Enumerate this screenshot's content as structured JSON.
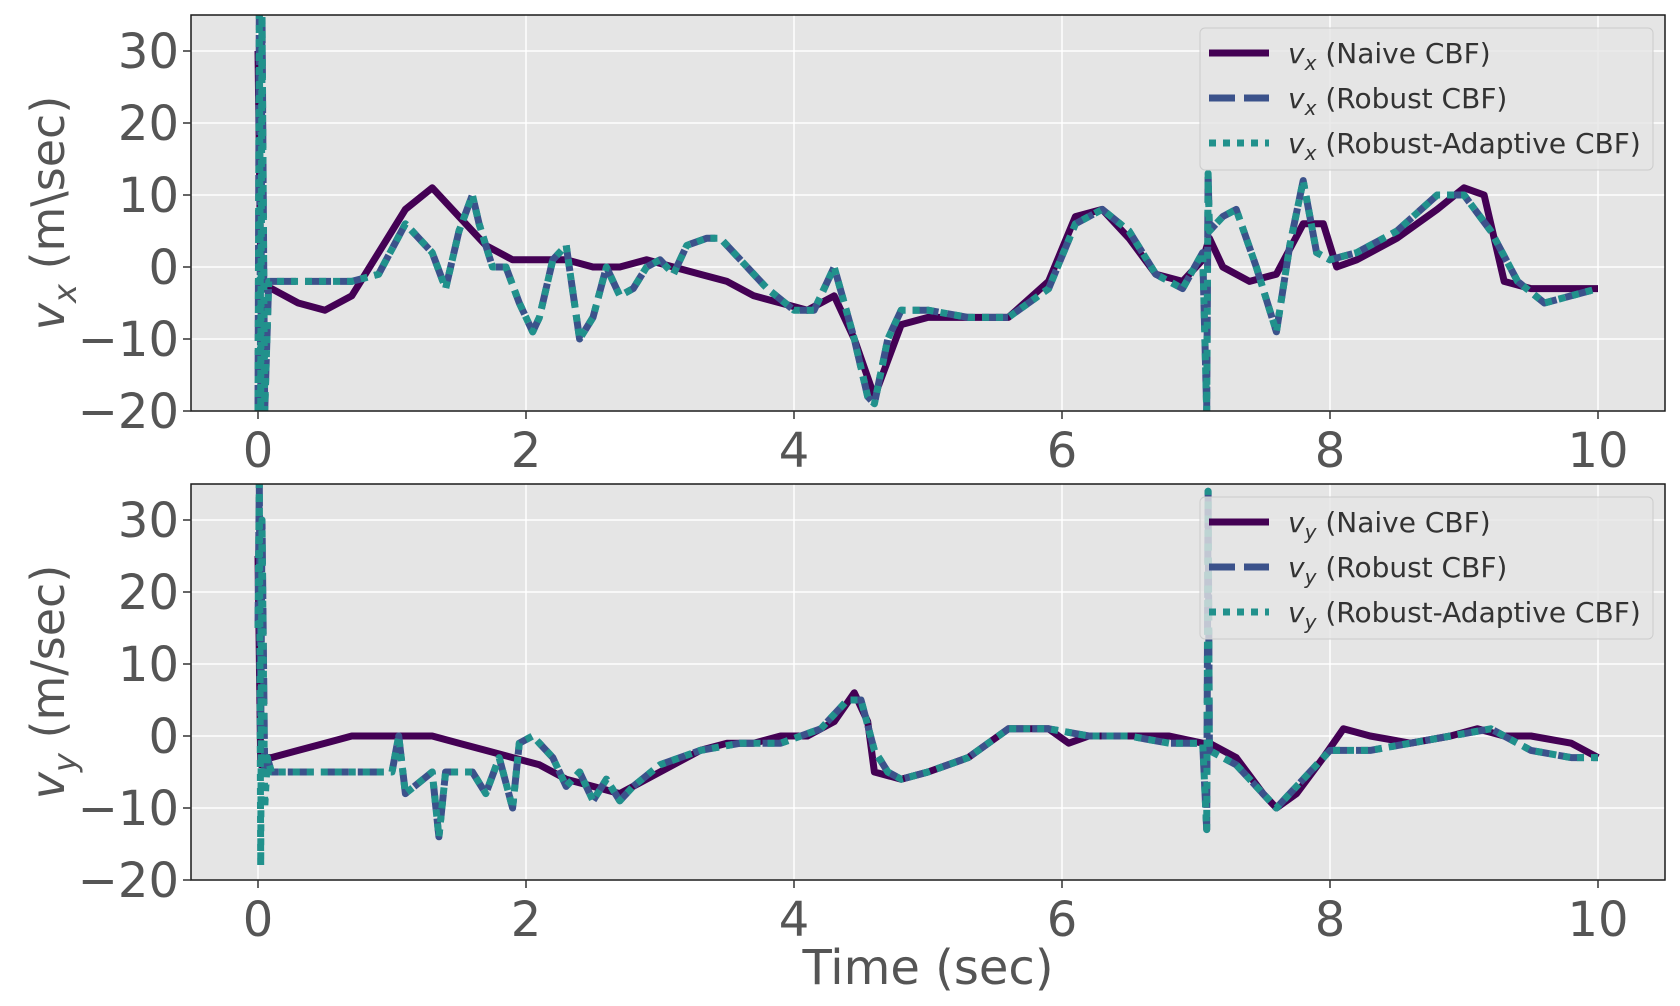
{
  "chart_data": [
    {
      "type": "line",
      "title": "",
      "xlabel": "",
      "ylabel_var": "v",
      "ylabel_sub": "x",
      "ylabel_unit": " (m\\sec)",
      "xlim": [
        -0.5,
        10.5
      ],
      "ylim": [
        -20,
        35
      ],
      "xticks": [
        "0",
        "2",
        "4",
        "6",
        "8",
        "10"
      ],
      "yticks": [
        "−20",
        "−10",
        "0",
        "10",
        "20",
        "30"
      ],
      "grid": true,
      "legend_position": "top-right",
      "legend_entries": [
        {
          "var": "v",
          "sub": "x",
          "label": " (Naive CBF)"
        },
        {
          "var": "v",
          "sub": "x",
          "label": " (Robust CBF)"
        },
        {
          "var": "v",
          "sub": "x",
          "label": " (Robust-Adaptive CBF)"
        }
      ],
      "series": [
        {
          "key": "naive",
          "color": "#440154",
          "style": "solid",
          "x": [
            0,
            0.02,
            0.05,
            0.1,
            0.3,
            0.5,
            0.7,
            0.9,
            1.1,
            1.3,
            1.5,
            1.7,
            1.9,
            2.1,
            2.3,
            2.5,
            2.7,
            2.9,
            3.1,
            3.3,
            3.5,
            3.7,
            3.9,
            4.1,
            4.3,
            4.45,
            4.6,
            4.8,
            5.0,
            5.3,
            5.6,
            5.9,
            6.1,
            6.3,
            6.5,
            6.7,
            6.9,
            7.05,
            7.1,
            7.2,
            7.4,
            7.6,
            7.8,
            7.95,
            8.05,
            8.2,
            8.5,
            8.8,
            9.0,
            9.15,
            9.3,
            9.5,
            9.8,
            10.0
          ],
          "y": [
            30,
            0,
            -3,
            -3,
            -5,
            -6,
            -4,
            2,
            8,
            11,
            7,
            3,
            1,
            1,
            1,
            0,
            0,
            1,
            0,
            -1,
            -2,
            -4,
            -5,
            -6,
            -4,
            -10,
            -18,
            -8,
            -7,
            -7,
            -7,
            -2,
            7,
            8,
            4,
            -1,
            -2,
            1,
            4,
            0,
            -2,
            -1,
            6,
            6,
            0,
            1,
            4,
            8,
            11,
            10,
            -2,
            -3,
            -3,
            -3
          ]
        },
        {
          "key": "robust",
          "color": "#3b528b",
          "style": "dashed",
          "x": [
            0,
            0.01,
            0.02,
            0.03,
            0.05,
            0.08,
            0.1,
            0.3,
            0.5,
            0.7,
            0.9,
            1.1,
            1.3,
            1.4,
            1.5,
            1.6,
            1.65,
            1.75,
            1.85,
            1.95,
            2.05,
            2.1,
            2.2,
            2.3,
            2.4,
            2.5,
            2.6,
            2.7,
            2.8,
            2.9,
            3.0,
            3.1,
            3.2,
            3.35,
            3.45,
            3.6,
            3.8,
            4.0,
            4.15,
            4.3,
            4.45,
            4.55,
            4.6,
            4.7,
            4.8,
            5.0,
            5.3,
            5.6,
            5.9,
            6.1,
            6.3,
            6.5,
            6.7,
            6.9,
            7.05,
            7.08,
            7.09,
            7.1,
            7.2,
            7.3,
            7.45,
            7.6,
            7.7,
            7.8,
            7.9,
            8.0,
            8.2,
            8.5,
            8.8,
            9.0,
            9.2,
            9.4,
            9.6,
            9.8,
            10.0
          ],
          "y": [
            -20,
            35,
            -20,
            35,
            -20,
            -2,
            -2,
            -2,
            -2,
            -2,
            -1,
            6,
            2,
            -3,
            5,
            10,
            6,
            0,
            0,
            -5,
            -9,
            -7,
            1,
            3,
            -10,
            -7,
            0,
            -4,
            -3,
            0,
            1,
            -1,
            3,
            4,
            4,
            1,
            -3,
            -6,
            -6,
            0,
            -10,
            -18,
            -19,
            -10,
            -6,
            -6,
            -7,
            -7,
            -3,
            6,
            8,
            5,
            -1,
            -3,
            2,
            -20,
            13,
            5,
            7,
            8,
            0,
            -9,
            3,
            12,
            2,
            1,
            2,
            5,
            10,
            10,
            5,
            -2,
            -5,
            -4,
            -3
          ]
        },
        {
          "key": "robust_adaptive",
          "color": "#21918c",
          "style": "dotted",
          "x": [
            0,
            0.01,
            0.02,
            0.03,
            0.05,
            0.08,
            0.1,
            0.3,
            0.5,
            0.7,
            0.9,
            1.1,
            1.3,
            1.4,
            1.5,
            1.6,
            1.65,
            1.75,
            1.85,
            1.95,
            2.05,
            2.1,
            2.2,
            2.3,
            2.4,
            2.5,
            2.6,
            2.7,
            2.8,
            2.9,
            3.0,
            3.1,
            3.2,
            3.35,
            3.45,
            3.6,
            3.8,
            4.0,
            4.15,
            4.3,
            4.45,
            4.55,
            4.6,
            4.7,
            4.8,
            5.0,
            5.3,
            5.6,
            5.9,
            6.1,
            6.3,
            6.5,
            6.7,
            6.9,
            7.05,
            7.08,
            7.09,
            7.1,
            7.2,
            7.3,
            7.45,
            7.6,
            7.7,
            7.8,
            7.9,
            8.0,
            8.2,
            8.5,
            8.8,
            9.0,
            9.2,
            9.4,
            9.6,
            9.8,
            10.0
          ],
          "y": [
            -20,
            35,
            -20,
            35,
            -20,
            -2,
            -2,
            -2,
            -2,
            -2,
            -1,
            6,
            2,
            -3,
            5,
            10,
            6,
            0,
            0,
            -5,
            -9,
            -7,
            1,
            3,
            -10,
            -7,
            0,
            -4,
            -3,
            0,
            1,
            -1,
            3,
            4,
            4,
            1,
            -3,
            -6,
            -6,
            0,
            -10,
            -18,
            -19,
            -10,
            -6,
            -6,
            -7,
            -7,
            -3,
            6,
            8,
            5,
            -1,
            -3,
            2,
            -20,
            13,
            5,
            7,
            8,
            0,
            -9,
            3,
            12,
            2,
            1,
            2,
            5,
            10,
            10,
            5,
            -2,
            -5,
            -4,
            -3
          ]
        }
      ]
    },
    {
      "type": "line",
      "title": "",
      "xlabel": "Time (sec)",
      "ylabel_var": "v",
      "ylabel_sub": "y",
      "ylabel_unit": " (m/sec)",
      "xlim": [
        -0.5,
        10.5
      ],
      "ylim": [
        -20,
        35
      ],
      "xticks": [
        "0",
        "2",
        "4",
        "6",
        "8",
        "10"
      ],
      "yticks": [
        "−20",
        "−10",
        "0",
        "10",
        "20",
        "30"
      ],
      "grid": true,
      "legend_position": "top-right",
      "legend_entries": [
        {
          "var": "v",
          "sub": "y",
          "label": " (Naive CBF)"
        },
        {
          "var": "v",
          "sub": "y",
          "label": " (Robust CBF)"
        },
        {
          "var": "v",
          "sub": "y",
          "label": " (Robust-Adaptive CBF)"
        }
      ],
      "series": [
        {
          "key": "naive",
          "color": "#440154",
          "style": "solid",
          "x": [
            0,
            0.02,
            0.05,
            0.1,
            0.3,
            0.5,
            0.7,
            0.9,
            1.1,
            1.3,
            1.5,
            1.7,
            1.9,
            2.1,
            2.3,
            2.5,
            2.7,
            2.9,
            3.1,
            3.3,
            3.5,
            3.7,
            3.9,
            4.1,
            4.3,
            4.45,
            4.55,
            4.6,
            4.8,
            5.0,
            5.3,
            5.6,
            5.9,
            6.05,
            6.2,
            6.5,
            6.8,
            7.05,
            7.1,
            7.3,
            7.5,
            7.6,
            7.75,
            7.95,
            8.1,
            8.3,
            8.6,
            8.9,
            9.1,
            9.3,
            9.5,
            9.8,
            10.0
          ],
          "y": [
            25,
            -4,
            -3,
            -3,
            -2,
            -1,
            0,
            0,
            0,
            0,
            -1,
            -2,
            -3,
            -4,
            -6,
            -7,
            -8,
            -6,
            -4,
            -2,
            -1,
            -1,
            0,
            0,
            2,
            6,
            2,
            -5,
            -6,
            -5,
            -3,
            1,
            1,
            -1,
            0,
            0,
            0,
            -1,
            -1,
            -3,
            -8,
            -10,
            -8,
            -3,
            1,
            0,
            -1,
            0,
            1,
            0,
            0,
            -1,
            -3
          ]
        },
        {
          "key": "robust",
          "color": "#3b528b",
          "style": "dashed",
          "x": [
            0,
            0.01,
            0.02,
            0.03,
            0.05,
            0.07,
            0.1,
            0.3,
            0.5,
            0.7,
            0.9,
            1.0,
            1.05,
            1.1,
            1.3,
            1.35,
            1.4,
            1.6,
            1.7,
            1.8,
            1.9,
            1.95,
            2.05,
            2.2,
            2.3,
            2.4,
            2.5,
            2.6,
            2.7,
            2.8,
            3.0,
            3.3,
            3.6,
            3.9,
            4.2,
            4.4,
            4.5,
            4.6,
            4.7,
            4.8,
            5.0,
            5.3,
            5.6,
            5.9,
            6.2,
            6.5,
            6.8,
            7.05,
            7.08,
            7.09,
            7.1,
            7.3,
            7.5,
            7.6,
            7.8,
            8.0,
            8.3,
            8.6,
            8.9,
            9.2,
            9.5,
            9.8,
            10.0
          ],
          "y": [
            15,
            35,
            0,
            30,
            -5,
            -3,
            -5,
            -5,
            -5,
            -5,
            -5,
            -5,
            0,
            -8,
            -5,
            -14,
            -5,
            -5,
            -8,
            -3,
            -10,
            -1,
            0,
            -3,
            -7,
            -5,
            -9,
            -6,
            -9,
            -7,
            -4,
            -2,
            -1,
            -1,
            1,
            5,
            5,
            -2,
            -5,
            -6,
            -5,
            -3,
            1,
            1,
            0,
            0,
            -1,
            -1,
            -13,
            34,
            -2,
            -4,
            -8,
            -10,
            -6,
            -2,
            -2,
            -1,
            0,
            1,
            -2,
            -3,
            -3
          ]
        },
        {
          "key": "robust_adaptive",
          "color": "#21918c",
          "style": "dotted",
          "x": [
            0,
            0.01,
            0.02,
            0.03,
            0.05,
            0.07,
            0.1,
            0.3,
            0.5,
            0.7,
            0.9,
            1.0,
            1.05,
            1.1,
            1.3,
            1.35,
            1.4,
            1.6,
            1.7,
            1.8,
            1.9,
            1.95,
            2.05,
            2.2,
            2.3,
            2.4,
            2.5,
            2.6,
            2.7,
            2.8,
            3.0,
            3.3,
            3.6,
            3.9,
            4.2,
            4.4,
            4.5,
            4.6,
            4.7,
            4.8,
            5.0,
            5.3,
            5.6,
            5.9,
            6.2,
            6.5,
            6.8,
            7.05,
            7.08,
            7.09,
            7.1,
            7.3,
            7.5,
            7.6,
            7.8,
            8.0,
            8.3,
            8.6,
            8.9,
            9.2,
            9.5,
            9.8,
            10.0
          ],
          "y": [
            15,
            35,
            -18,
            30,
            -10,
            -3,
            -5,
            -5,
            -5,
            -5,
            -5,
            -5,
            0,
            -8,
            -5,
            -14,
            -5,
            -5,
            -8,
            -3,
            -10,
            -1,
            0,
            -3,
            -7,
            -5,
            -9,
            -6,
            -9,
            -7,
            -4,
            -2,
            -1,
            -1,
            1,
            5,
            5,
            -2,
            -5,
            -6,
            -5,
            -3,
            1,
            1,
            0,
            0,
            -1,
            -1,
            -13,
            34,
            -2,
            -4,
            -8,
            -10,
            -6,
            -2,
            -2,
            -1,
            0,
            1,
            -2,
            -3,
            -3
          ]
        }
      ]
    }
  ]
}
